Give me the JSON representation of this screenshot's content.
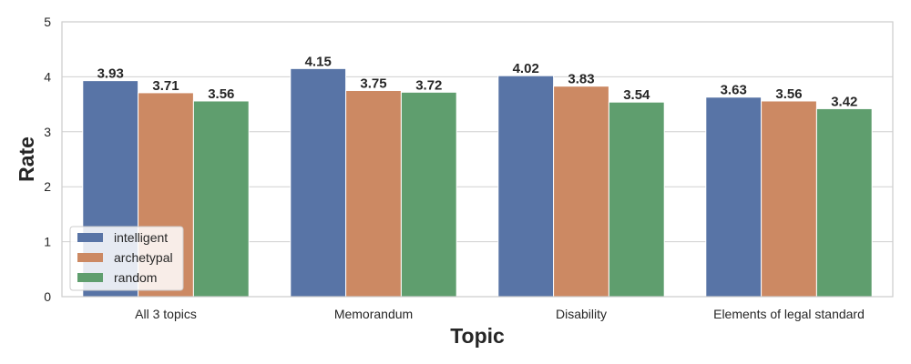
{
  "chart_data": {
    "type": "bar",
    "xlabel": "Topic",
    "ylabel": "Rate",
    "ylim": [
      0,
      5
    ],
    "yticks": [
      0,
      1,
      2,
      3,
      4,
      5
    ],
    "grid": true,
    "legend_position": "lower-left",
    "categories": [
      "All 3 topics",
      "Memorandum",
      "Disability",
      "Elements of legal standard"
    ],
    "series": [
      {
        "name": "intelligent",
        "color": "#5874a6",
        "values": [
          3.93,
          4.15,
          4.02,
          3.63
        ]
      },
      {
        "name": "archetypal",
        "color": "#cc8963",
        "values": [
          3.71,
          3.75,
          3.83,
          3.56
        ]
      },
      {
        "name": "random",
        "color": "#5f9e6e",
        "values": [
          3.56,
          3.72,
          3.54,
          3.42
        ]
      }
    ]
  }
}
